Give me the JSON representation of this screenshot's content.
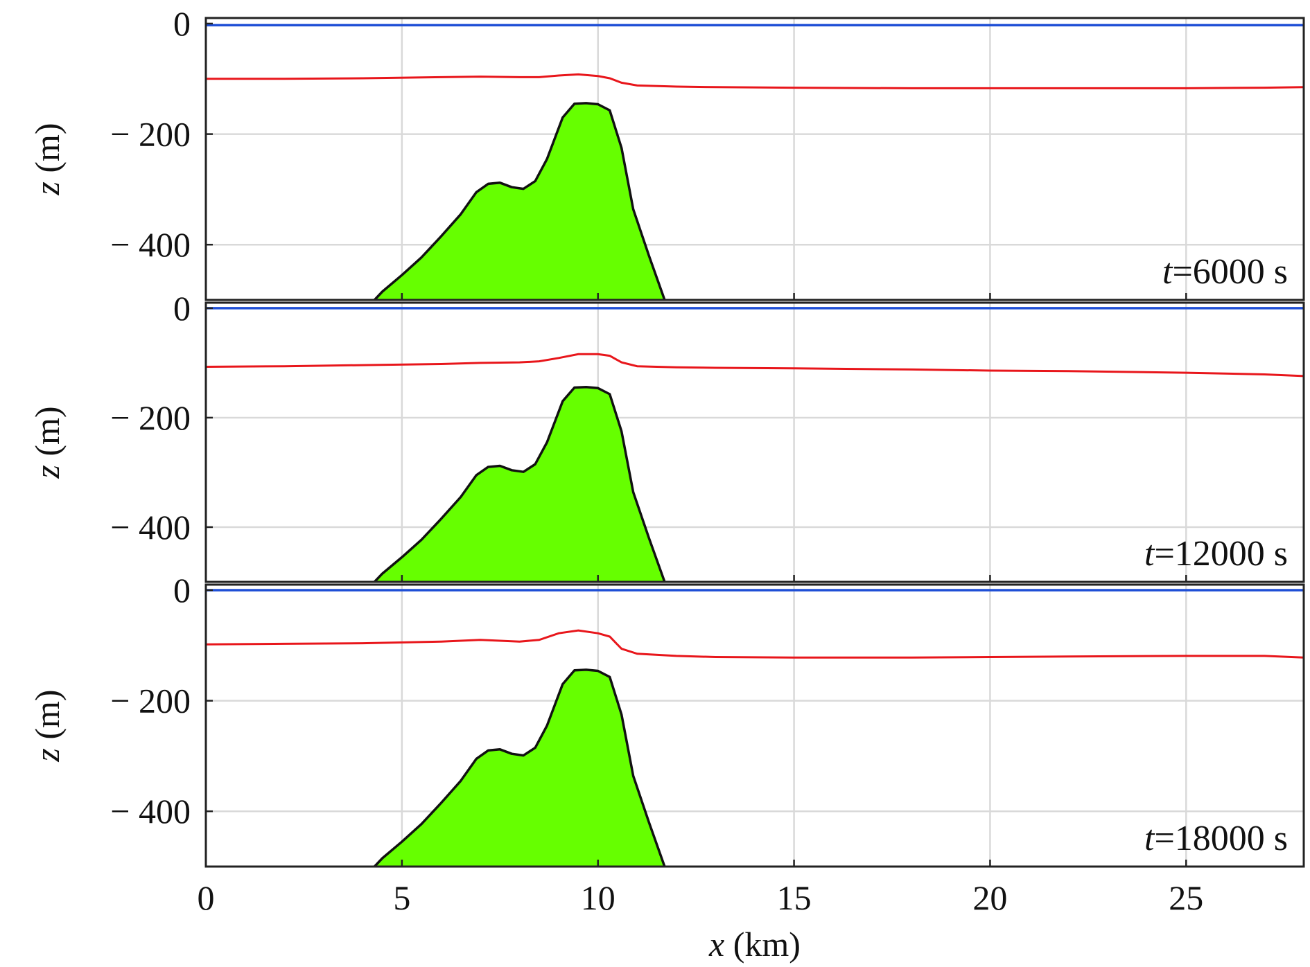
{
  "colors": {
    "surface": "#1f4fd6",
    "pycnocline": "#e8161b",
    "bathymetry_fill": "#66ff00",
    "bathymetry_edge": "#111111",
    "grid": "#d9d9d9",
    "frame": "#222222"
  },
  "chart_data": [
    {
      "type": "line",
      "annotation": {
        "italic": "t",
        "rest": "=6000 s"
      },
      "ylabel": {
        "italic": "z",
        "rest": " (m)"
      },
      "ylim": [
        -500,
        10
      ],
      "yticks": [
        0,
        -200,
        -400
      ],
      "ytick_labels": [
        "0",
        "− 200",
        "− 400"
      ],
      "xlim": [
        0,
        28
      ],
      "xticks": [
        5,
        10,
        15,
        20,
        25
      ],
      "grid": true,
      "series": [
        {
          "role": "surface",
          "x": [
            0,
            28
          ],
          "y": [
            -3,
            -3
          ]
        },
        {
          "role": "interface",
          "x": [
            0,
            2,
            4,
            6,
            7,
            8,
            8.5,
            9,
            9.5,
            10,
            10.3,
            10.6,
            11,
            12,
            13,
            15,
            18,
            20,
            22,
            25,
            27,
            28
          ],
          "y": [
            -100,
            -100,
            -99,
            -97,
            -96,
            -97,
            -97,
            -94,
            -92,
            -95,
            -99,
            -107,
            -112,
            -114,
            -115,
            -116,
            -117,
            -117,
            -117,
            -117,
            -116,
            -115
          ]
        },
        {
          "role": "bathymetry",
          "x": [
            4.3,
            4.5,
            5,
            5.5,
            6,
            6.5,
            6.9,
            7.2,
            7.5,
            7.8,
            8.1,
            8.4,
            8.7,
            9.1,
            9.4,
            9.7,
            10.0,
            10.3,
            10.6,
            10.9,
            11.3,
            11.7
          ],
          "y": [
            -500,
            -485,
            -455,
            -423,
            -385,
            -345,
            -305,
            -290,
            -288,
            -296,
            -299,
            -285,
            -245,
            -170,
            -145,
            -144,
            -146,
            -157,
            -225,
            -336,
            -420,
            -500
          ]
        }
      ]
    },
    {
      "type": "line",
      "annotation": {
        "italic": "t",
        "rest": "=12000 s"
      },
      "ylabel": {
        "italic": "z",
        "rest": " (m)"
      },
      "ylim": [
        -500,
        10
      ],
      "yticks": [
        0,
        -200,
        -400
      ],
      "ytick_labels": [
        "0",
        "− 200",
        "− 400"
      ],
      "xlim": [
        0,
        28
      ],
      "xticks": [
        5,
        10,
        15,
        20,
        25
      ],
      "grid": true,
      "series": [
        {
          "role": "surface",
          "x": [
            0,
            28
          ],
          "y": [
            0,
            0
          ]
        },
        {
          "role": "interface",
          "x": [
            0,
            2,
            4,
            6,
            7,
            8,
            8.5,
            9,
            9.5,
            10,
            10.3,
            10.6,
            11,
            12,
            13,
            15,
            18,
            20,
            22,
            25,
            27,
            28
          ],
          "y": [
            -107,
            -106,
            -104,
            -102,
            -100,
            -99,
            -97,
            -91,
            -84,
            -84,
            -87,
            -99,
            -106,
            -108,
            -109,
            -110,
            -112,
            -114,
            -115,
            -118,
            -121,
            -124
          ]
        },
        {
          "role": "bathymetry",
          "x": [
            4.3,
            4.5,
            5,
            5.5,
            6,
            6.5,
            6.9,
            7.2,
            7.5,
            7.8,
            8.1,
            8.4,
            8.7,
            9.1,
            9.4,
            9.7,
            10.0,
            10.3,
            10.6,
            10.9,
            11.3,
            11.7
          ],
          "y": [
            -500,
            -485,
            -455,
            -423,
            -385,
            -345,
            -305,
            -290,
            -288,
            -296,
            -299,
            -285,
            -245,
            -170,
            -145,
            -144,
            -146,
            -157,
            -225,
            -336,
            -420,
            -500
          ]
        }
      ]
    },
    {
      "type": "line",
      "annotation": {
        "italic": "t",
        "rest": "=18000 s"
      },
      "ylabel": {
        "italic": "z",
        "rest": " (m)"
      },
      "xlabel": {
        "italic": "x",
        "rest": " (km)"
      },
      "ylim": [
        -500,
        10
      ],
      "yticks": [
        0,
        -200,
        -400
      ],
      "ytick_labels": [
        "0",
        "− 200",
        "− 400"
      ],
      "xlim": [
        0,
        28
      ],
      "xticks": [
        0,
        5,
        10,
        15,
        20,
        25
      ],
      "xtick_labels": [
        "0",
        "5",
        "10",
        "15",
        "20",
        "25"
      ],
      "grid": true,
      "series": [
        {
          "role": "surface",
          "x": [
            0,
            28
          ],
          "y": [
            0,
            0
          ]
        },
        {
          "role": "interface",
          "x": [
            0,
            2,
            4,
            6,
            7,
            8,
            8.5,
            9,
            9.5,
            10,
            10.3,
            10.6,
            11,
            12,
            13,
            15,
            18,
            20,
            22,
            25,
            27,
            28
          ],
          "y": [
            -98,
            -97,
            -96,
            -93,
            -90,
            -93,
            -90,
            -78,
            -73,
            -78,
            -84,
            -106,
            -115,
            -119,
            -121,
            -122,
            -122,
            -121,
            -120,
            -119,
            -119,
            -122
          ]
        },
        {
          "role": "bathymetry",
          "x": [
            4.3,
            4.5,
            5,
            5.5,
            6,
            6.5,
            6.9,
            7.2,
            7.5,
            7.8,
            8.1,
            8.4,
            8.7,
            9.1,
            9.4,
            9.7,
            10.0,
            10.3,
            10.6,
            10.9,
            11.3,
            11.7
          ],
          "y": [
            -500,
            -485,
            -455,
            -423,
            -385,
            -345,
            -305,
            -290,
            -288,
            -296,
            -299,
            -285,
            -245,
            -170,
            -145,
            -144,
            -146,
            -157,
            -225,
            -336,
            -420,
            -500
          ]
        }
      ]
    }
  ]
}
